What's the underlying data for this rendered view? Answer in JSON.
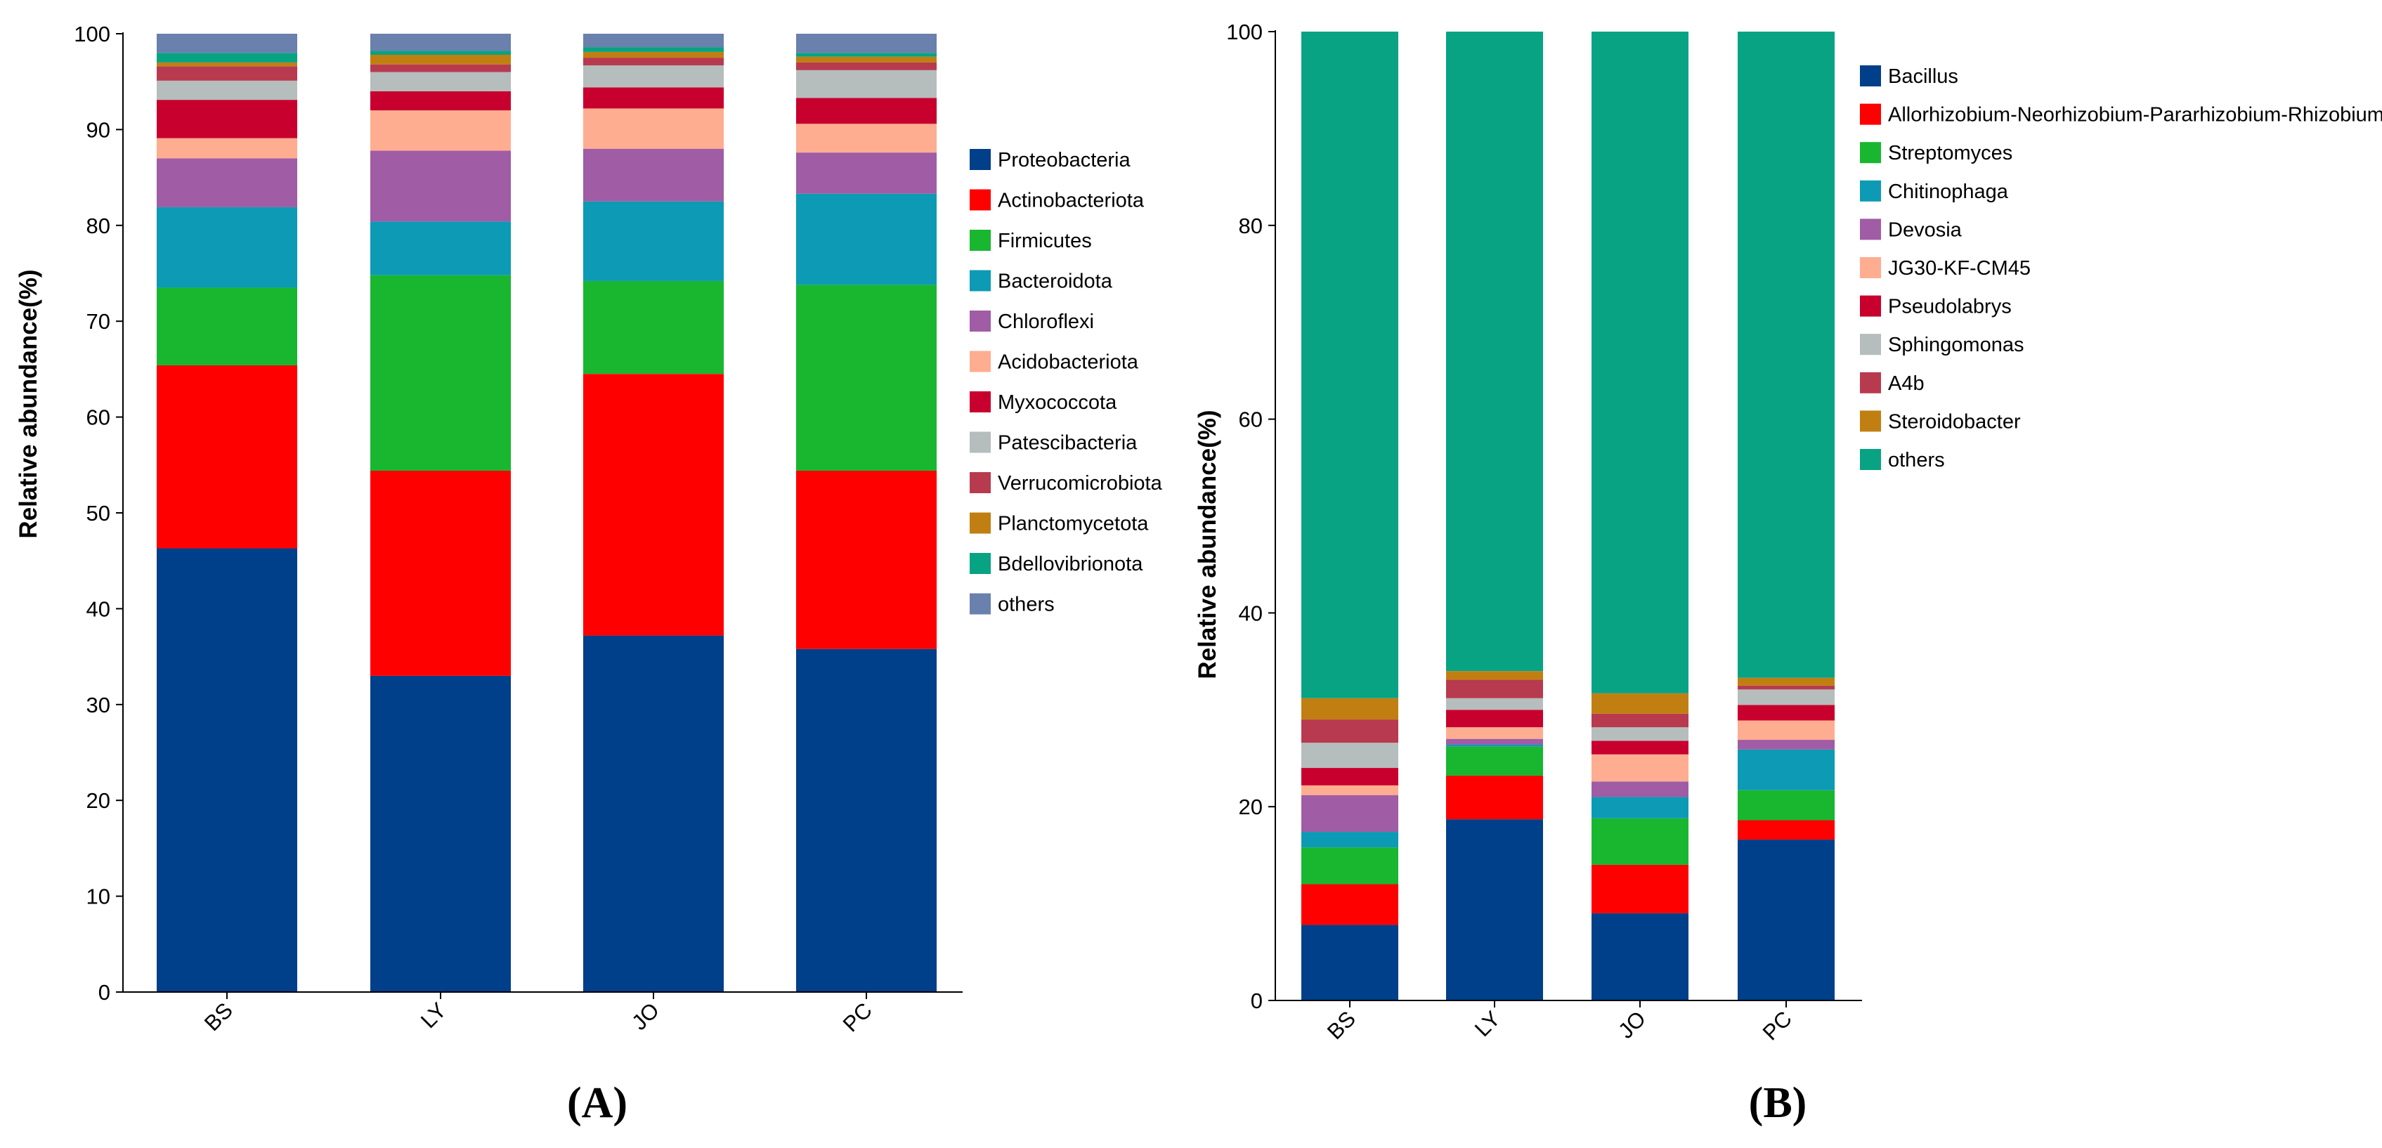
{
  "chart_data": [
    {
      "type": "bar",
      "stacked": true,
      "panel_label": "(A)",
      "ylabel": "Relative abundance(%)",
      "ylim": [
        0,
        100
      ],
      "yticks": [
        "0",
        "10",
        "20",
        "30",
        "40",
        "50",
        "60",
        "70",
        "80",
        "90",
        "100"
      ],
      "categories": [
        "BS",
        "LY",
        "JO",
        "PC"
      ],
      "legend_position": "right",
      "series": [
        {
          "name": "Proteobacteria",
          "color": "#003f8a",
          "values": [
            46.3,
            33.0,
            37.2,
            35.8
          ]
        },
        {
          "name": "Actinobacteriota",
          "color": "#ff0000",
          "values": [
            19.1,
            21.4,
            27.3,
            18.6
          ]
        },
        {
          "name": "Firmicutes",
          "color": "#19b630",
          "values": [
            8.1,
            20.4,
            9.7,
            19.4
          ]
        },
        {
          "name": "Bacteroidota",
          "color": "#0c9ab5",
          "values": [
            8.4,
            5.6,
            8.3,
            9.5
          ]
        },
        {
          "name": "Chloroflexi",
          "color": "#a05ca5",
          "values": [
            5.1,
            7.4,
            5.5,
            4.3
          ]
        },
        {
          "name": "Acidobacteriota",
          "color": "#ffad90",
          "values": [
            2.1,
            4.2,
            4.2,
            3.0
          ]
        },
        {
          "name": "Myxococcota",
          "color": "#c8002d",
          "values": [
            4.0,
            2.0,
            2.2,
            2.7
          ]
        },
        {
          "name": "Patescibacteria",
          "color": "#b5bdbd",
          "values": [
            2.0,
            2.0,
            2.3,
            2.9
          ]
        },
        {
          "name": "Verrucomicrobiota",
          "color": "#b83a4e",
          "values": [
            1.5,
            0.8,
            0.8,
            0.8
          ]
        },
        {
          "name": "Planctomycetota",
          "color": "#c17f12",
          "values": [
            0.4,
            1.0,
            0.6,
            0.6
          ]
        },
        {
          "name": "Bdellovibrionota",
          "color": "#08a383",
          "values": [
            1.0,
            0.4,
            0.5,
            0.4
          ]
        },
        {
          "name": "others",
          "color": "#6a80ad",
          "values": [
            2.0,
            1.8,
            1.4,
            2.0
          ]
        }
      ]
    },
    {
      "type": "bar",
      "stacked": true,
      "panel_label": "(B)",
      "ylabel": "Relative abundance(%)",
      "ylim": [
        0,
        100
      ],
      "yticks": [
        "0",
        "20",
        "40",
        "60",
        "80",
        "100"
      ],
      "categories": [
        "BS",
        "LY",
        "JO",
        "PC"
      ],
      "legend_position": "right",
      "series": [
        {
          "name": "Bacillus",
          "color": "#003f8a",
          "values": [
            7.8,
            18.7,
            9.0,
            16.6
          ]
        },
        {
          "name": "Allorhizobium-Neorhizobium-Pararhizobium-Rhizobium",
          "color": "#ff0000",
          "values": [
            4.2,
            4.5,
            5.0,
            2.0
          ]
        },
        {
          "name": "Streptomyces",
          "color": "#19b630",
          "values": [
            3.8,
            3.0,
            4.8,
            3.1
          ]
        },
        {
          "name": "Chitinophaga",
          "color": "#0c9ab5",
          "values": [
            1.6,
            0.2,
            2.2,
            4.2
          ]
        },
        {
          "name": "Devosia",
          "color": "#a05ca5",
          "values": [
            3.8,
            0.6,
            1.6,
            1.0
          ]
        },
        {
          "name": "JG30-KF-CM45",
          "color": "#ffad90",
          "values": [
            1.0,
            1.2,
            2.8,
            2.0
          ]
        },
        {
          "name": "Pseudolabrys",
          "color": "#c8002d",
          "values": [
            1.8,
            1.8,
            1.4,
            1.6
          ]
        },
        {
          "name": "Sphingomonas",
          "color": "#b5bdbd",
          "values": [
            2.6,
            1.2,
            1.4,
            1.6
          ]
        },
        {
          "name": "A4b",
          "color": "#b83a4e",
          "values": [
            2.4,
            1.9,
            1.4,
            0.4
          ]
        },
        {
          "name": "Steroidobacter",
          "color": "#c17f12",
          "values": [
            2.2,
            0.9,
            2.1,
            0.8
          ]
        },
        {
          "name": "others",
          "color": "#08a383",
          "values": [
            68.8,
            66.0,
            68.3,
            66.7
          ]
        }
      ]
    }
  ]
}
